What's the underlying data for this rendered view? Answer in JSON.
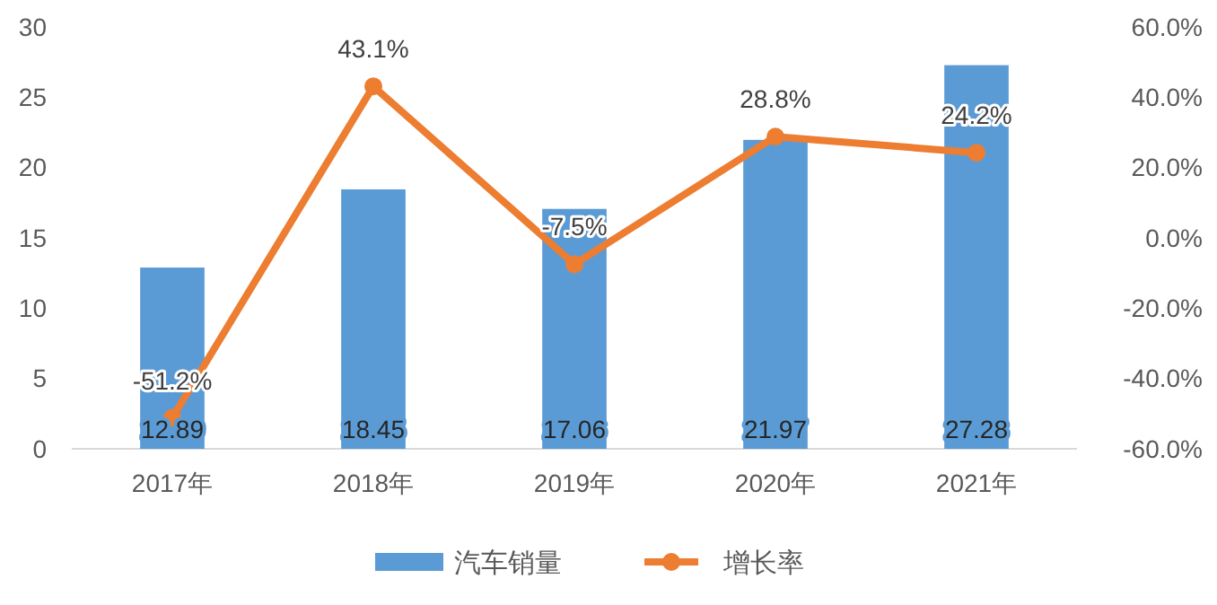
{
  "chart_data": {
    "type": "bar",
    "categories": [
      "2017年",
      "2018年",
      "2019年",
      "2020年",
      "2021年"
    ],
    "series": [
      {
        "name": "汽车销量",
        "color": "#5b9bd5",
        "values": [
          12.89,
          18.45,
          17.06,
          21.97,
          27.28
        ],
        "value_labels": [
          "12.89",
          "18.45",
          "17.06",
          "21.97",
          "27.28"
        ]
      },
      {
        "name": "增长率",
        "type": "line",
        "axis": "y2",
        "color": "#ed7d31",
        "marker": "circle",
        "values": [
          -51.2,
          43.1,
          -7.5,
          28.8,
          24.2
        ],
        "value_labels": [
          "-51.2%",
          "43.1%",
          "-7.5%",
          "28.8%",
          "24.2%"
        ]
      }
    ],
    "ylim": [
      0,
      30
    ],
    "yticks": [
      0,
      5,
      10,
      15,
      20,
      25,
      30
    ],
    "y2lim": [
      -60,
      60
    ],
    "y2ticks": [
      {
        "value": -60,
        "label": "-60.0%"
      },
      {
        "value": -40,
        "label": "-40.0%"
      },
      {
        "value": -20,
        "label": "-20.0%"
      },
      {
        "value": 0,
        "label": "0.0%"
      },
      {
        "value": 20,
        "label": "20.0%"
      },
      {
        "value": 40,
        "label": "40.0%"
      },
      {
        "value": 60,
        "label": "60.0%"
      }
    ],
    "grid": false,
    "legend": "bottom"
  }
}
